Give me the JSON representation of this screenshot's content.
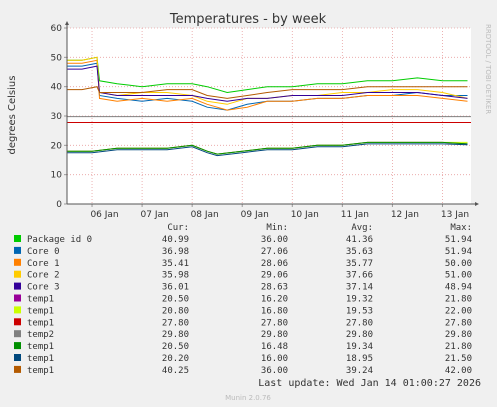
{
  "chart_data": {
    "type": "line",
    "title": "Temperatures - by week",
    "ylabel": "degrees Celsius",
    "xlabel": "",
    "watermark": "RRDTOOL / TOBI OETIKER",
    "ylim": [
      0,
      60
    ],
    "y_ticks": [
      0,
      10,
      20,
      30,
      40,
      50,
      60
    ],
    "x_domain": [
      0,
      8.07
    ],
    "x_ticks": [
      {
        "label": "06 Jan",
        "x": 0.75
      },
      {
        "label": "07 Jan",
        "x": 1.75
      },
      {
        "label": "08 Jan",
        "x": 2.75
      },
      {
        "label": "09 Jan",
        "x": 3.75
      },
      {
        "label": "10 Jan",
        "x": 4.75
      },
      {
        "label": "11 Jan",
        "x": 5.75
      },
      {
        "label": "12 Jan",
        "x": 6.75
      },
      {
        "label": "13 Jan",
        "x": 7.75
      }
    ],
    "grid": true,
    "legend_columns": [
      "Cur:",
      "Min:",
      "Avg:",
      "Max:"
    ],
    "series": [
      {
        "name": "Package id 0",
        "color": "#00cc00",
        "cur": "40.99",
        "min": "36.00",
        "avg": "41.36",
        "max": "51.94",
        "x": [
          0,
          0.3,
          0.6,
          0.65,
          1.0,
          1.5,
          2.0,
          2.5,
          2.8,
          3.2,
          3.6,
          4.0,
          4.5,
          5.0,
          5.5,
          6.0,
          6.5,
          7.0,
          7.5,
          8.0
        ],
        "y": [
          49,
          49,
          50,
          42,
          41,
          40,
          41,
          41,
          40,
          38,
          39,
          40,
          40,
          41,
          41,
          42,
          42,
          43,
          42,
          42
        ]
      },
      {
        "name": "Core 0",
        "color": "#0066b3",
        "cur": "36.98",
        "min": "27.06",
        "avg": "35.63",
        "max": "51.94",
        "x": [
          0,
          0.3,
          0.6,
          0.65,
          1.0,
          1.5,
          2.0,
          2.5,
          2.8,
          3.2,
          3.6,
          4.0,
          4.5,
          5.0,
          5.5,
          6.0,
          6.5,
          7.0,
          7.5,
          8.0
        ],
        "y": [
          47,
          47,
          48,
          37,
          36,
          35,
          36,
          35,
          33,
          32,
          34,
          35,
          35,
          36,
          36,
          37,
          37,
          38,
          37,
          37
        ]
      },
      {
        "name": "Core 1",
        "color": "#ff8000",
        "cur": "35.41",
        "min": "28.06",
        "avg": "35.77",
        "max": "50.00",
        "x": [
          0,
          0.3,
          0.6,
          0.65,
          1.0,
          1.5,
          2.0,
          2.5,
          2.8,
          3.2,
          3.6,
          4.0,
          4.5,
          5.0,
          5.5,
          6.0,
          6.5,
          7.0,
          7.5,
          8.0
        ],
        "y": [
          48,
          48,
          49,
          36,
          35,
          36,
          35,
          36,
          34,
          32,
          33,
          35,
          35,
          36,
          36,
          37,
          37,
          37,
          36,
          35
        ]
      },
      {
        "name": "Core 2",
        "color": "#ffcc00",
        "cur": "35.98",
        "min": "29.06",
        "avg": "37.66",
        "max": "51.00",
        "x": [
          0,
          0.3,
          0.6,
          0.65,
          1.0,
          1.5,
          2.0,
          2.5,
          2.8,
          3.2,
          3.6,
          4.0,
          4.5,
          5.0,
          5.5,
          6.0,
          6.5,
          7.0,
          7.5,
          8.0
        ],
        "y": [
          49,
          49,
          50,
          38,
          37,
          38,
          38,
          37,
          35,
          34,
          36,
          36,
          37,
          37,
          38,
          38,
          39,
          39,
          38,
          36
        ]
      },
      {
        "name": "Core 3",
        "color": "#330099",
        "cur": "36.01",
        "min": "28.63",
        "avg": "37.14",
        "max": "48.94",
        "x": [
          0,
          0.3,
          0.6,
          0.65,
          1.0,
          1.5,
          2.0,
          2.5,
          2.8,
          3.2,
          3.6,
          4.0,
          4.5,
          5.0,
          5.5,
          6.0,
          6.5,
          7.0,
          7.5,
          8.0
        ],
        "y": [
          46,
          46,
          47,
          38,
          37,
          37,
          37,
          37,
          36,
          35,
          36,
          36,
          37,
          37,
          37,
          38,
          38,
          38,
          37,
          36
        ]
      },
      {
        "name": "temp1",
        "color": "#990099",
        "cur": "20.50",
        "min": "16.20",
        "avg": "19.32",
        "max": "21.80",
        "x": [
          0,
          0.5,
          1.0,
          1.5,
          2.0,
          2.5,
          2.8,
          3.0,
          3.5,
          4.0,
          4.5,
          5.0,
          5.5,
          6.0,
          6.5,
          7.0,
          7.5,
          8.0
        ],
        "y": [
          18,
          18,
          19,
          19,
          19,
          20,
          18,
          17,
          18,
          19,
          19,
          20,
          20,
          21,
          21,
          21,
          21,
          20.5
        ]
      },
      {
        "name": "temp1",
        "color": "#ccff00",
        "cur": "20.80",
        "min": "16.80",
        "avg": "19.53",
        "max": "22.00",
        "x": [
          0,
          0.5,
          1.0,
          1.5,
          2.0,
          2.5,
          2.8,
          3.0,
          3.5,
          4.0,
          4.5,
          5.0,
          5.5,
          6.0,
          6.5,
          7.0,
          7.5,
          8.0
        ],
        "y": [
          18,
          18,
          19,
          19,
          19,
          20,
          18,
          17,
          18,
          19,
          19,
          20,
          20,
          21,
          21,
          21,
          21,
          21
        ]
      },
      {
        "name": "temp1",
        "color": "#cc0000",
        "cur": "27.80",
        "min": "27.80",
        "avg": "27.80",
        "max": "27.80",
        "x": [
          0,
          8.07
        ],
        "y": [
          27.8,
          27.8
        ]
      },
      {
        "name": "temp2",
        "color": "#808080",
        "cur": "29.80",
        "min": "29.80",
        "avg": "29.80",
        "max": "29.80",
        "x": [
          0,
          8.07
        ],
        "y": [
          29.8,
          29.8
        ]
      },
      {
        "name": "temp1",
        "color": "#008f00",
        "cur": "20.50",
        "min": "16.48",
        "avg": "19.34",
        "max": "21.80",
        "x": [
          0,
          0.5,
          1.0,
          1.5,
          2.0,
          2.5,
          2.8,
          3.0,
          3.5,
          4.0,
          4.5,
          5.0,
          5.5,
          6.0,
          6.5,
          7.0,
          7.5,
          8.0
        ],
        "y": [
          18,
          18,
          19,
          19,
          19,
          20,
          18,
          17,
          18,
          19,
          19,
          20,
          20,
          21,
          21,
          21,
          21,
          20.5
        ]
      },
      {
        "name": "temp1",
        "color": "#00487d",
        "cur": "20.20",
        "min": "16.00",
        "avg": "18.95",
        "max": "21.50",
        "x": [
          0,
          0.5,
          1.0,
          1.5,
          2.0,
          2.5,
          2.8,
          3.0,
          3.5,
          4.0,
          4.5,
          5.0,
          5.5,
          6.0,
          6.5,
          7.0,
          7.5,
          8.0
        ],
        "y": [
          17.5,
          17.5,
          18.5,
          18.5,
          18.5,
          19.5,
          17.5,
          16.5,
          17.5,
          18.5,
          18.5,
          19.5,
          19.5,
          20.5,
          20.5,
          20.5,
          20.5,
          20.2
        ]
      },
      {
        "name": "temp1",
        "color": "#b35a00",
        "cur": "40.25",
        "min": "36.00",
        "avg": "39.24",
        "max": "42.00",
        "x": [
          0,
          0.3,
          0.6,
          0.65,
          1.0,
          1.5,
          2.0,
          2.5,
          2.8,
          3.2,
          3.6,
          4.0,
          4.5,
          5.0,
          5.5,
          6.0,
          6.5,
          7.0,
          7.5,
          8.0
        ],
        "y": [
          39,
          39,
          40,
          38,
          38,
          38,
          39,
          39,
          37,
          36,
          37,
          38,
          39,
          39,
          39,
          40,
          40,
          40,
          40,
          40
        ]
      }
    ]
  },
  "footer": {
    "last_update": "Last update: Wed Jan 14 01:00:27 2026",
    "generator": "Munin 2.0.76"
  }
}
